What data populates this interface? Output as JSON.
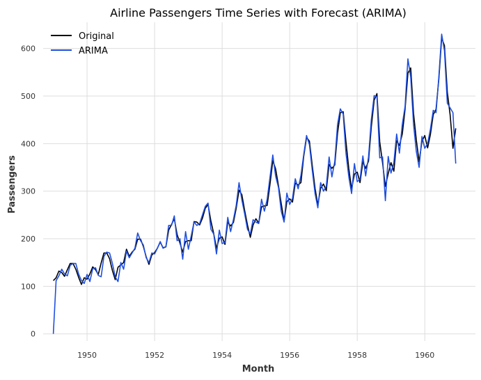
{
  "chart_data": {
    "type": "line",
    "title": "Airline Passengers Time Series with Forecast (ARIMA)",
    "xlabel": "Month",
    "ylabel": "Passengers",
    "xlim": [
      1948.7,
      1961.5
    ],
    "ylim": [
      -15,
      655
    ],
    "x_ticks": [
      1950,
      1952,
      1954,
      1956,
      1958,
      1960
    ],
    "y_ticks": [
      0,
      100,
      200,
      300,
      400,
      500,
      600
    ],
    "grid": true,
    "legend_position": "top-left",
    "x_start": 1949.0,
    "x_step": 0.0833333,
    "series": [
      {
        "name": "Original",
        "color": "#000000",
        "values": [
          112,
          118,
          132,
          129,
          121,
          135,
          148,
          148,
          136,
          119,
          104,
          118,
          115,
          126,
          141,
          135,
          125,
          149,
          170,
          170,
          158,
          133,
          114,
          140,
          145,
          150,
          178,
          163,
          172,
          178,
          199,
          199,
          184,
          162,
          146,
          166,
          171,
          180,
          193,
          181,
          183,
          218,
          230,
          242,
          209,
          191,
          172,
          194,
          196,
          196,
          236,
          235,
          229,
          243,
          264,
          272,
          237,
          211,
          180,
          201,
          204,
          188,
          235,
          227,
          234,
          264,
          302,
          293,
          259,
          229,
          203,
          229,
          242,
          233,
          267,
          269,
          270,
          315,
          364,
          347,
          312,
          274,
          237,
          278,
          284,
          277,
          317,
          313,
          318,
          374,
          413,
          405,
          355,
          306,
          271,
          306,
          315,
          301,
          356,
          348,
          355,
          422,
          465,
          467,
          404,
          347,
          305,
          336,
          340,
          318,
          362,
          348,
          363,
          435,
          491,
          505,
          404,
          359,
          310,
          337,
          360,
          342,
          406,
          396,
          420,
          472,
          548,
          559,
          463,
          407,
          362,
          405,
          417,
          391,
          419,
          461,
          472,
          535,
          622,
          606,
          508,
          461,
          390,
          432
        ]
      },
      {
        "name": "ARIMA",
        "color": "#1f4fe0",
        "values": [
          0,
          112,
          122,
          136,
          126,
          122,
          144,
          148,
          148,
          126,
          112,
          106,
          125,
          110,
          137,
          139,
          123,
          120,
          163,
          172,
          170,
          148,
          120,
          110,
          150,
          136,
          174,
          160,
          170,
          180,
          212,
          196,
          187,
          160,
          150,
          170,
          168,
          180,
          194,
          180,
          183,
          228,
          228,
          248,
          196,
          200,
          157,
          215,
          178,
          206,
          235,
          228,
          232,
          250,
          268,
          275,
          220,
          210,
          168,
          218,
          190,
          192,
          245,
          215,
          240,
          270,
          318,
          282,
          252,
          220,
          210,
          240,
          235,
          232,
          283,
          258,
          283,
          330,
          376,
          332,
          308,
          258,
          235,
          296,
          272,
          285,
          326,
          305,
          333,
          378,
          417,
          398,
          345,
          295,
          265,
          318,
          300,
          310,
          372,
          330,
          362,
          440,
          473,
          462,
          380,
          330,
          295,
          358,
          320,
          325,
          374,
          332,
          372,
          450,
          501,
          498,
          370,
          372,
          280,
          373,
          338,
          360,
          420,
          380,
          440,
          478,
          578,
          540,
          440,
          383,
          350,
          415,
          390,
          400,
          430,
          470,
          465,
          540,
          630,
          595,
          485,
          475,
          465,
          358
        ]
      }
    ]
  }
}
